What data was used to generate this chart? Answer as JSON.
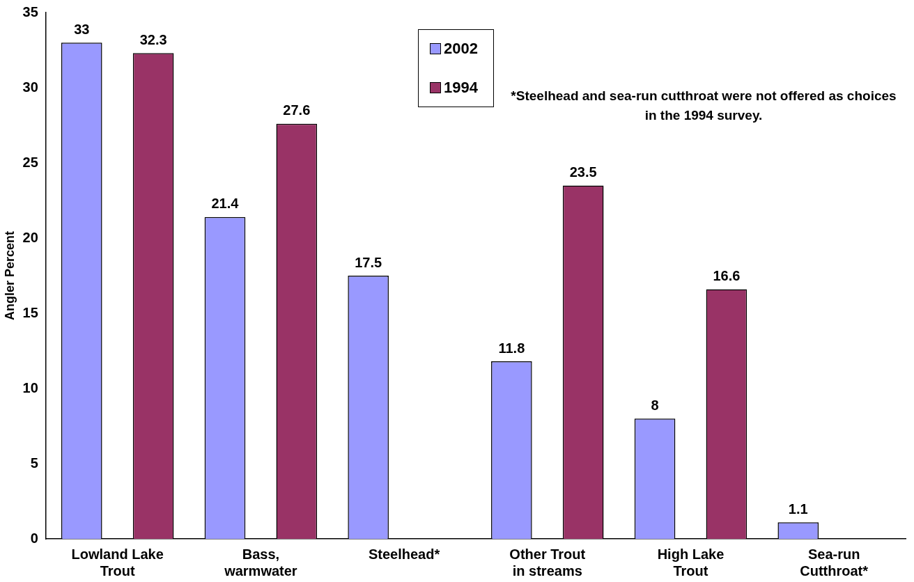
{
  "chart_data": {
    "type": "bar",
    "ylabel": "Angler Percent",
    "categories": [
      "Lowland Lake Trout",
      "Bass, warmwater",
      "Steelhead*",
      "Other Trout in streams",
      "High Lake Trout",
      "Sea-run Cutthroat*"
    ],
    "series": [
      {
        "name": "2002",
        "color": "#9999ff",
        "values": [
          33,
          21.4,
          17.5,
          11.8,
          8,
          1.1
        ]
      },
      {
        "name": "1994",
        "color": "#993366",
        "values": [
          32.3,
          27.6,
          null,
          23.5,
          16.6,
          null
        ]
      }
    ],
    "ylim": [
      0,
      35
    ],
    "yticks": [
      0,
      5,
      10,
      15,
      20,
      25,
      30,
      35
    ],
    "grid": false,
    "legend": "top",
    "data_labels": true,
    "annotations": [
      "*Steelhead and sea-run cutthroat were not offered as choices in the 1994 survey."
    ]
  }
}
